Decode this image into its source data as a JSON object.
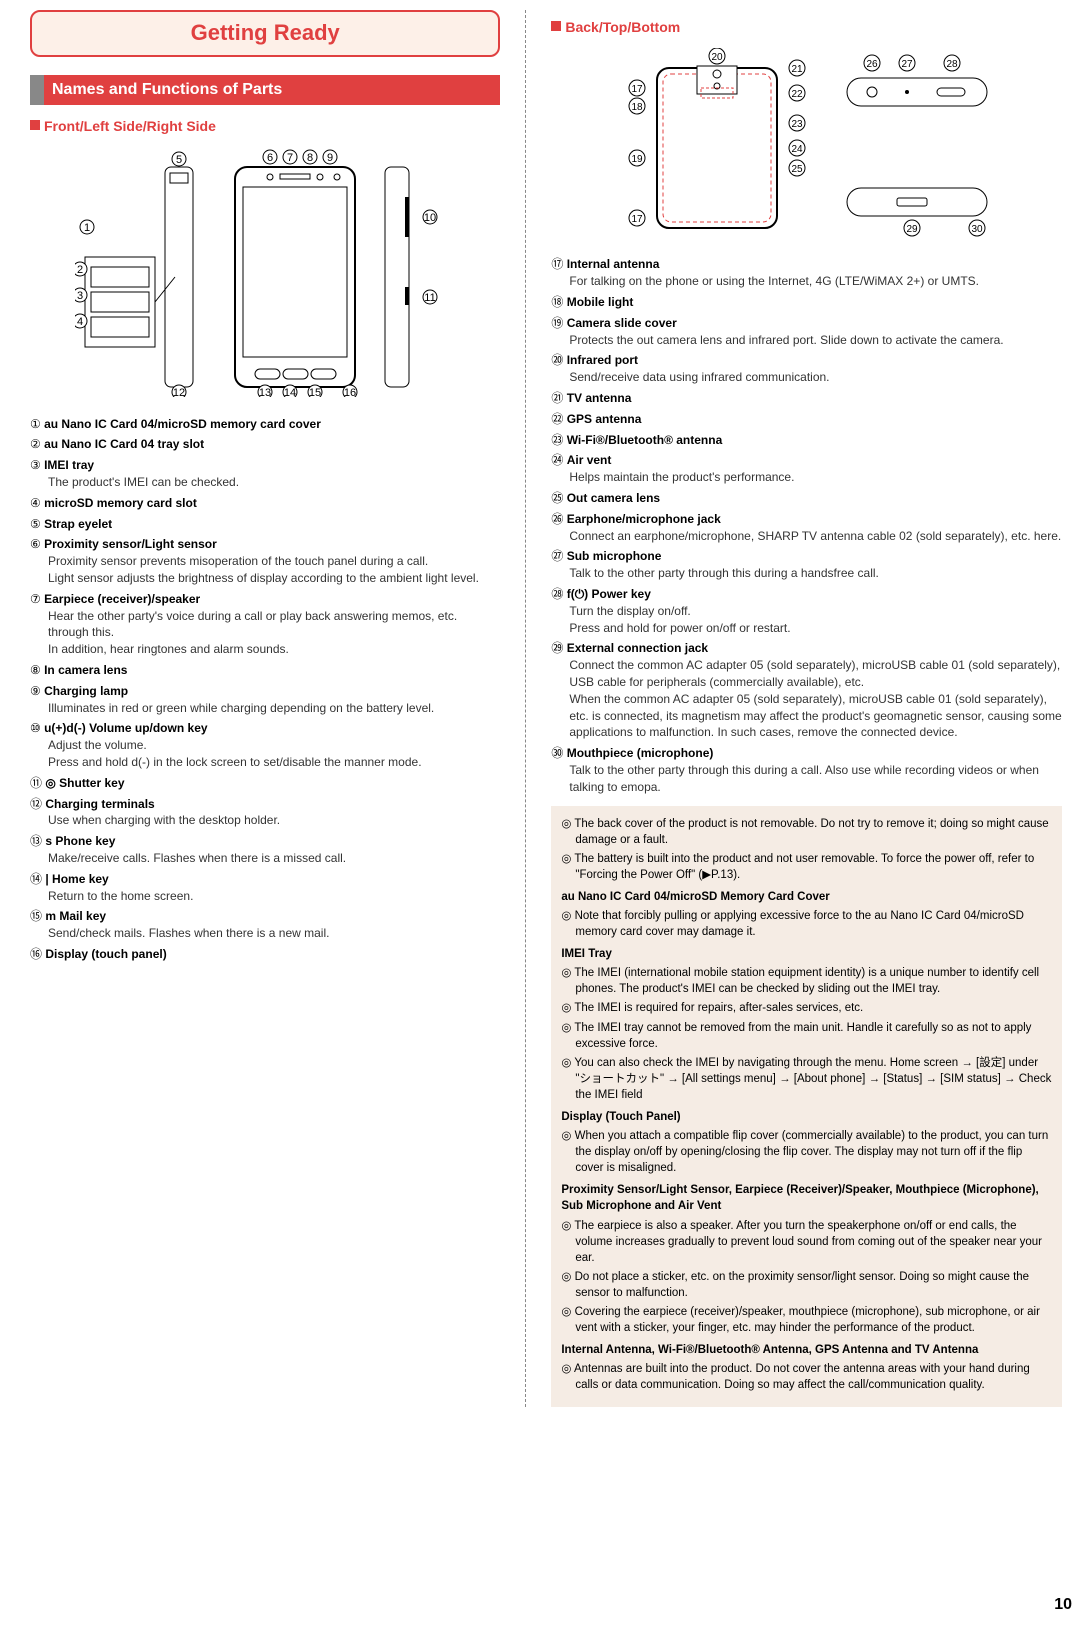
{
  "header": {
    "title": "Getting Ready"
  },
  "section": {
    "title": "Names and Functions of Parts"
  },
  "left": {
    "subheading": "Front/Left Side/Right Side",
    "parts": [
      {
        "n": "①",
        "title": "au Nano IC Card 04/microSD memory card cover",
        "desc": ""
      },
      {
        "n": "②",
        "title": "au Nano IC Card 04 tray slot",
        "desc": ""
      },
      {
        "n": "③",
        "title": "IMEI tray",
        "desc": "The product's IMEI can be checked."
      },
      {
        "n": "④",
        "title": "microSD memory card slot",
        "desc": ""
      },
      {
        "n": "⑤",
        "title": "Strap eyelet",
        "desc": ""
      },
      {
        "n": "⑥",
        "title": "Proximity sensor/Light sensor",
        "desc": "Proximity sensor prevents misoperation of the touch panel during a call.\nLight sensor adjusts the brightness of display according to the ambient light level."
      },
      {
        "n": "⑦",
        "title": "Earpiece (receiver)/speaker",
        "desc": "Hear the other party's voice during a call or play back answering memos, etc. through this.\nIn addition, hear ringtones and alarm sounds."
      },
      {
        "n": "⑧",
        "title": "In camera lens",
        "desc": ""
      },
      {
        "n": "⑨",
        "title": "Charging lamp",
        "desc": "Illuminates in red or green while charging depending on the battery level."
      },
      {
        "n": "⑩",
        "title": "u(+)d(-) Volume up/down key",
        "desc": "Adjust the volume.\nPress and hold d(-) in the lock screen to set/disable the manner mode."
      },
      {
        "n": "⑪",
        "title": "◎ Shutter key",
        "desc": ""
      },
      {
        "n": "⑫",
        "title": "Charging terminals",
        "desc": "Use when charging with the desktop holder."
      },
      {
        "n": "⑬",
        "title": "s Phone key",
        "desc": "Make/receive calls. Flashes when there is a missed call."
      },
      {
        "n": "⑭",
        "title": "| Home key",
        "desc": "Return to the home screen."
      },
      {
        "n": "⑮",
        "title": "m Mail key",
        "desc": "Send/check mails. Flashes when there is a new mail."
      },
      {
        "n": "⑯",
        "title": "Display (touch panel)",
        "desc": ""
      }
    ]
  },
  "right": {
    "subheading": "Back/Top/Bottom",
    "parts": [
      {
        "n": "⑰",
        "title": "Internal antenna",
        "desc": "For talking on the phone or using the Internet, 4G (LTE/WiMAX 2+) or UMTS."
      },
      {
        "n": "⑱",
        "title": "Mobile light",
        "desc": ""
      },
      {
        "n": "⑲",
        "title": "Camera slide cover",
        "desc": "Protects the out camera lens and infrared port. Slide down to activate the camera."
      },
      {
        "n": "⑳",
        "title": "Infrared port",
        "desc": "Send/receive data using infrared communication."
      },
      {
        "n": "㉑",
        "title": "TV antenna",
        "desc": ""
      },
      {
        "n": "㉒",
        "title": "GPS antenna",
        "desc": ""
      },
      {
        "n": "㉓",
        "title": "Wi-Fi®/Bluetooth® antenna",
        "desc": ""
      },
      {
        "n": "㉔",
        "title": "Air vent",
        "desc": "Helps maintain the product's performance."
      },
      {
        "n": "㉕",
        "title": "Out camera lens",
        "desc": ""
      },
      {
        "n": "㉖",
        "title": "Earphone/microphone jack",
        "desc": "Connect an earphone/microphone, SHARP TV antenna cable 02 (sold separately), etc. here."
      },
      {
        "n": "㉗",
        "title": "Sub microphone",
        "desc": "Talk to the other party through this during a handsfree call."
      },
      {
        "n": "㉘",
        "title": "f(⏻) Power key",
        "desc": "Turn the display on/off.\nPress and hold for power on/off or restart."
      },
      {
        "n": "㉙",
        "title": "External connection jack",
        "desc": "Connect the common AC adapter 05 (sold separately), microUSB cable 01 (sold separately), USB cable for peripherals (commercially available), etc.\nWhen the common AC adapter 05 (sold separately), microUSB cable 01 (sold separately), etc. is connected, its magnetism may affect the product's geomagnetic sensor, causing some applications to malfunction. In such cases, remove the connected device."
      },
      {
        "n": "㉚",
        "title": "Mouthpiece (microphone)",
        "desc": "Talk to the other party through this during a call. Also use while recording videos or when talking to emopa."
      }
    ],
    "notes": [
      {
        "type": "line",
        "text": "◎ The back cover of the product is not removable. Do not try to remove it; doing so might cause damage or a fault."
      },
      {
        "type": "line",
        "text": "◎ The battery is built into the product and not user removable. To force the power off, refer to \"Forcing the Power Off\" (▶P.13)."
      },
      {
        "type": "heading",
        "text": "au Nano IC Card 04/microSD Memory Card Cover"
      },
      {
        "type": "line",
        "text": "◎ Note that forcibly pulling or applying excessive force to the au Nano IC Card 04/microSD memory card cover may damage it."
      },
      {
        "type": "heading",
        "text": "IMEI Tray"
      },
      {
        "type": "line",
        "text": "◎ The IMEI (international mobile station equipment identity) is a unique number to identify cell phones. The product's IMEI can be checked by sliding out the IMEI tray."
      },
      {
        "type": "line",
        "text": "◎ The IMEI is required for repairs, after-sales services, etc."
      },
      {
        "type": "line",
        "text": "◎ The IMEI tray cannot be removed from the main unit. Handle it carefully so as not to apply excessive force."
      },
      {
        "type": "line",
        "text": "◎ You can also check the IMEI by navigating through the menu. Home screen → [設定] under \"ショートカット\" → [All settings menu] → [About phone] → [Status] → [SIM status] → Check the IMEI field"
      },
      {
        "type": "heading",
        "text": "Display (Touch Panel)"
      },
      {
        "type": "line",
        "text": "◎ When you attach a compatible flip cover (commercially available) to the product, you can turn the display on/off by opening/closing the flip cover. The display may not turn off if the flip cover is misaligned."
      },
      {
        "type": "heading",
        "text": "Proximity Sensor/Light Sensor, Earpiece (Receiver)/Speaker, Mouthpiece (Microphone), Sub Microphone and Air Vent"
      },
      {
        "type": "line",
        "text": "◎ The earpiece is also a speaker. After you turn the speakerphone on/off or end calls, the volume increases gradually to prevent loud sound from coming out of the speaker near your ear."
      },
      {
        "type": "line",
        "text": "◎ Do not place a sticker, etc. on the proximity sensor/light sensor. Doing so might cause the sensor to malfunction."
      },
      {
        "type": "line",
        "text": "◎ Covering the earpiece (receiver)/speaker, mouthpiece (microphone), sub microphone, or air vent with a sticker, your finger, etc. may hinder the performance of the product."
      },
      {
        "type": "heading",
        "text": "Internal Antenna, Wi-Fi®/Bluetooth® Antenna, GPS Antenna and TV Antenna"
      },
      {
        "type": "line",
        "text": "◎ Antennas are built into the product. Do not cover the antenna areas with your hand during calls or data communication. Doing so may affect the call/communication quality."
      }
    ]
  },
  "pageNumber": "10"
}
